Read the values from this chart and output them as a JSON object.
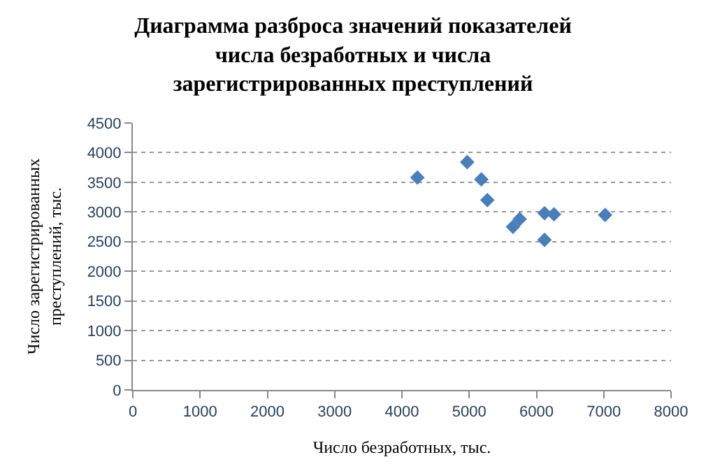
{
  "chart_data": {
    "type": "scatter",
    "title": "Диаграмма разброса значений показателей\nчисла безработных и числа\nзарегистрированных преступлений",
    "xlabel": "Число безработных, тыс.",
    "ylabel": "Число зарегистрированных\nпреступлений, тыс.",
    "x": [
      4230,
      4970,
      5180,
      5270,
      5650,
      5700,
      5750,
      6120,
      6260,
      6120,
      7020
    ],
    "series": [
      {
        "color": "#4a7ebb",
        "values": [
          3580,
          3840,
          3550,
          3200,
          2750,
          null,
          2880,
          2980,
          2960,
          2530,
          2950
        ]
      }
    ],
    "xlim": [
      0,
      8000
    ],
    "xticks": [
      0,
      1000,
      2000,
      3000,
      4000,
      5000,
      6000,
      7000,
      8000
    ],
    "ylim": [
      0,
      4500
    ],
    "yticks": [
      0,
      500,
      1000,
      1500,
      2000,
      2500,
      3000,
      3500,
      4000,
      4500
    ],
    "grid": "y",
    "marker": "diamond",
    "legend": false
  }
}
